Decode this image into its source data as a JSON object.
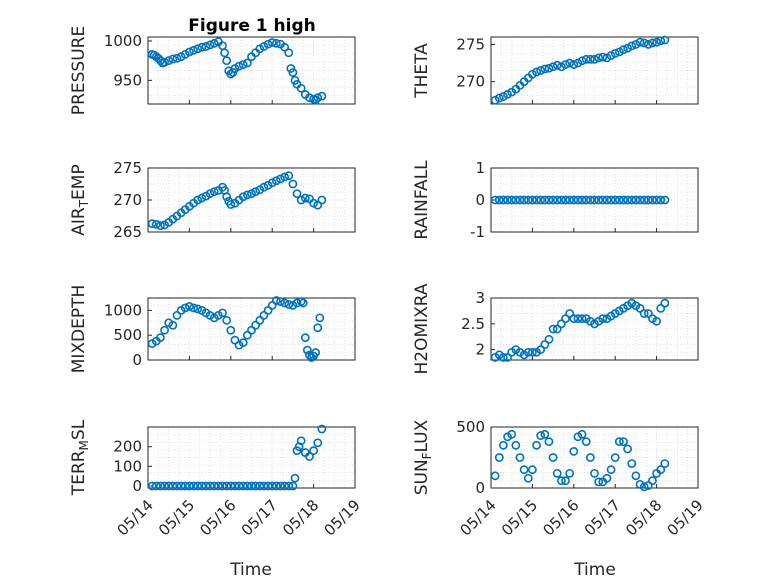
{
  "figure": {
    "title": "Figure 1 high",
    "marker_color": "#0072BD",
    "grid": "dotted-minor",
    "xlabel": "Time"
  },
  "chart_data": [
    {
      "type": "scatter",
      "ylabel": "PRESSURE",
      "title": "Figure 1 high",
      "xlim": [
        "05/14",
        "05/19"
      ],
      "ylim": [
        920,
        1005
      ],
      "yticks": [
        950,
        1000
      ],
      "x": [
        0.1,
        0.15,
        0.2,
        0.25,
        0.3,
        0.35,
        0.4,
        0.5,
        0.6,
        0.7,
        0.8,
        0.9,
        1.0,
        1.1,
        1.2,
        1.3,
        1.4,
        1.5,
        1.6,
        1.7,
        1.8,
        1.85,
        1.9,
        1.95,
        2.0,
        2.05,
        2.1,
        2.2,
        2.3,
        2.4,
        2.5,
        2.6,
        2.7,
        2.8,
        2.9,
        3.0,
        3.1,
        3.2,
        3.3,
        3.4,
        3.45,
        3.5,
        3.55,
        3.6,
        3.7,
        3.8,
        3.9,
        4.0,
        4.05,
        4.1,
        4.2
      ],
      "values": [
        983,
        982,
        980,
        978,
        975,
        972,
        973,
        975,
        977,
        978,
        980,
        983,
        986,
        988,
        990,
        992,
        993,
        995,
        997,
        999,
        994,
        985,
        975,
        962,
        958,
        960,
        965,
        968,
        970,
        972,
        980,
        985,
        990,
        993,
        996,
        998,
        997,
        996,
        992,
        985,
        965,
        960,
        950,
        945,
        940,
        932,
        928,
        926,
        925,
        928,
        930
      ]
    },
    {
      "type": "scatter",
      "ylabel": "THETA",
      "xlim": [
        "05/14",
        "05/19"
      ],
      "ylim": [
        267,
        276
      ],
      "yticks": [
        270,
        275
      ],
      "x": [
        0.1,
        0.2,
        0.3,
        0.4,
        0.5,
        0.6,
        0.7,
        0.8,
        0.9,
        1.0,
        1.1,
        1.2,
        1.3,
        1.4,
        1.5,
        1.6,
        1.7,
        1.8,
        1.9,
        2.0,
        2.1,
        2.2,
        2.3,
        2.4,
        2.5,
        2.6,
        2.7,
        2.8,
        2.9,
        3.0,
        3.1,
        3.2,
        3.3,
        3.4,
        3.5,
        3.6,
        3.7,
        3.8,
        3.9,
        4.0,
        4.1,
        4.2
      ],
      "values": [
        267.5,
        267.8,
        268.0,
        268.3,
        268.6,
        269.0,
        269.5,
        270.0,
        270.5,
        271.0,
        271.3,
        271.5,
        271.7,
        271.8,
        272.0,
        272.2,
        272.0,
        272.3,
        272.5,
        272.3,
        272.5,
        272.8,
        273.0,
        273.0,
        273.0,
        273.2,
        273.3,
        273.2,
        273.5,
        273.8,
        274.0,
        274.3,
        274.5,
        274.8,
        275.0,
        275.3,
        275.2,
        275.0,
        275.2,
        275.3,
        275.5,
        275.6
      ]
    },
    {
      "type": "scatter",
      "ylabel": "AIR_TEMP",
      "xlim": [
        "05/14",
        "05/19"
      ],
      "ylim": [
        265,
        275
      ],
      "yticks": [
        265,
        270,
        275
      ],
      "x": [
        0.1,
        0.2,
        0.3,
        0.4,
        0.5,
        0.6,
        0.7,
        0.8,
        0.9,
        1.0,
        1.1,
        1.2,
        1.3,
        1.4,
        1.5,
        1.6,
        1.7,
        1.8,
        1.85,
        1.9,
        1.95,
        2.0,
        2.1,
        2.2,
        2.3,
        2.4,
        2.5,
        2.6,
        2.7,
        2.8,
        2.9,
        3.0,
        3.1,
        3.2,
        3.3,
        3.4,
        3.5,
        3.6,
        3.7,
        3.8,
        3.9,
        4.0,
        4.1,
        4.2
      ],
      "values": [
        266.3,
        266.2,
        266.0,
        266.1,
        266.5,
        267.0,
        267.5,
        268.0,
        268.5,
        269.0,
        269.5,
        270.0,
        270.3,
        270.6,
        271.0,
        271.3,
        271.5,
        272.0,
        271.5,
        270.5,
        269.8,
        269.3,
        269.5,
        270.0,
        270.5,
        270.8,
        271.0,
        271.3,
        271.6,
        272.0,
        272.3,
        272.7,
        273.0,
        273.3,
        273.6,
        273.8,
        272.5,
        271.0,
        270.0,
        270.3,
        270.2,
        269.5,
        269.2,
        270.0
      ]
    },
    {
      "type": "scatter",
      "ylabel": "RAINFALL",
      "xlim": [
        "05/14",
        "05/19"
      ],
      "ylim": [
        -1,
        1
      ],
      "yticks": [
        -1,
        0,
        1
      ],
      "x": [
        0.1,
        0.2,
        0.3,
        0.4,
        0.5,
        0.6,
        0.7,
        0.8,
        0.9,
        1.0,
        1.1,
        1.2,
        1.3,
        1.4,
        1.5,
        1.6,
        1.7,
        1.8,
        1.9,
        2.0,
        2.1,
        2.2,
        2.3,
        2.4,
        2.5,
        2.6,
        2.7,
        2.8,
        2.9,
        3.0,
        3.1,
        3.2,
        3.3,
        3.4,
        3.5,
        3.6,
        3.7,
        3.8,
        3.9,
        4.0,
        4.1,
        4.2
      ],
      "values": [
        0,
        0,
        0,
        0,
        0,
        0,
        0,
        0,
        0,
        0,
        0,
        0,
        0,
        0,
        0,
        0,
        0,
        0,
        0,
        0,
        0,
        0,
        0,
        0,
        0,
        0,
        0,
        0,
        0,
        0,
        0,
        0,
        0,
        0,
        0,
        0,
        0,
        0,
        0,
        0,
        0,
        0
      ]
    },
    {
      "type": "scatter",
      "ylabel": "MIXDEPTH",
      "xlim": [
        "05/14",
        "05/19"
      ],
      "ylim": [
        0,
        1250
      ],
      "yticks": [
        0,
        500,
        1000
      ],
      "x": [
        0.1,
        0.2,
        0.3,
        0.4,
        0.5,
        0.6,
        0.7,
        0.8,
        0.9,
        1.0,
        1.1,
        1.2,
        1.3,
        1.4,
        1.5,
        1.6,
        1.7,
        1.8,
        1.9,
        2.0,
        2.1,
        2.2,
        2.3,
        2.4,
        2.5,
        2.6,
        2.7,
        2.8,
        2.9,
        3.0,
        3.1,
        3.2,
        3.3,
        3.4,
        3.5,
        3.6,
        3.7,
        3.75,
        3.8,
        3.85,
        3.9,
        3.95,
        4.0,
        4.05,
        4.1,
        4.15
      ],
      "values": [
        330,
        380,
        450,
        600,
        750,
        700,
        900,
        1000,
        1050,
        1080,
        1050,
        1030,
        1000,
        950,
        900,
        850,
        900,
        950,
        800,
        600,
        400,
        300,
        350,
        500,
        600,
        700,
        800,
        900,
        1000,
        1100,
        1200,
        1180,
        1150,
        1120,
        1100,
        1150,
        1180,
        1150,
        450,
        200,
        100,
        50,
        80,
        150,
        650,
        850
      ]
    },
    {
      "type": "scatter",
      "ylabel": "H2OMIXRA",
      "xlim": [
        "05/14",
        "05/19"
      ],
      "ylim": [
        1.8,
        3.0
      ],
      "yticks": [
        2,
        2.5,
        3
      ],
      "x": [
        0.1,
        0.2,
        0.3,
        0.4,
        0.5,
        0.6,
        0.7,
        0.8,
        0.9,
        1.0,
        1.1,
        1.2,
        1.3,
        1.4,
        1.5,
        1.6,
        1.7,
        1.8,
        1.9,
        2.0,
        2.1,
        2.2,
        2.3,
        2.4,
        2.5,
        2.6,
        2.7,
        2.8,
        2.9,
        3.0,
        3.1,
        3.2,
        3.3,
        3.4,
        3.5,
        3.6,
        3.7,
        3.8,
        3.9,
        4.0,
        4.1,
        4.2
      ],
      "values": [
        1.85,
        1.9,
        1.85,
        1.85,
        1.95,
        2.0,
        1.95,
        1.9,
        1.95,
        1.95,
        1.95,
        2.0,
        2.1,
        2.2,
        2.4,
        2.4,
        2.5,
        2.6,
        2.7,
        2.6,
        2.6,
        2.6,
        2.6,
        2.55,
        2.5,
        2.55,
        2.6,
        2.6,
        2.65,
        2.7,
        2.75,
        2.8,
        2.85,
        2.9,
        2.85,
        2.8,
        2.7,
        2.7,
        2.6,
        2.55,
        2.8,
        2.9
      ]
    },
    {
      "type": "scatter",
      "ylabel": "TERR_MSL",
      "xlim": [
        "05/14",
        "05/19"
      ],
      "ylim": [
        -10,
        300
      ],
      "yticks": [
        0,
        100,
        200
      ],
      "x": [
        0.1,
        0.2,
        0.3,
        0.4,
        0.5,
        0.6,
        0.7,
        0.8,
        0.9,
        1.0,
        1.1,
        1.2,
        1.3,
        1.4,
        1.5,
        1.6,
        1.7,
        1.8,
        1.9,
        2.0,
        2.1,
        2.2,
        2.3,
        2.4,
        2.5,
        2.6,
        2.7,
        2.8,
        2.9,
        3.0,
        3.1,
        3.2,
        3.3,
        3.4,
        3.5,
        3.55,
        3.6,
        3.65,
        3.7,
        3.8,
        3.9,
        4.0,
        4.1,
        4.2
      ],
      "values": [
        0,
        0,
        0,
        0,
        0,
        0,
        0,
        0,
        0,
        0,
        0,
        0,
        0,
        0,
        0,
        0,
        0,
        0,
        0,
        0,
        0,
        0,
        0,
        0,
        0,
        0,
        0,
        0,
        0,
        0,
        0,
        0,
        0,
        0,
        0,
        40,
        180,
        200,
        230,
        170,
        150,
        180,
        220,
        290
      ]
    },
    {
      "type": "scatter",
      "ylabel": "SUN_FLUX",
      "xlim": [
        "05/14",
        "05/19"
      ],
      "ylim": [
        0,
        500
      ],
      "yticks": [
        0,
        500
      ],
      "x": [
        0.1,
        0.2,
        0.3,
        0.4,
        0.5,
        0.6,
        0.7,
        0.8,
        0.9,
        1.0,
        1.1,
        1.2,
        1.3,
        1.4,
        1.5,
        1.6,
        1.7,
        1.8,
        1.9,
        2.0,
        2.1,
        2.2,
        2.3,
        2.4,
        2.5,
        2.6,
        2.7,
        2.8,
        2.9,
        3.0,
        3.1,
        3.2,
        3.3,
        3.4,
        3.5,
        3.6,
        3.7,
        3.8,
        3.9,
        4.0,
        4.1,
        4.2
      ],
      "values": [
        100,
        250,
        350,
        420,
        440,
        350,
        250,
        150,
        80,
        150,
        350,
        430,
        440,
        380,
        250,
        120,
        60,
        60,
        120,
        300,
        420,
        440,
        380,
        250,
        120,
        50,
        50,
        80,
        150,
        250,
        380,
        380,
        320,
        200,
        100,
        30,
        10,
        20,
        60,
        120,
        150,
        200
      ]
    }
  ],
  "xticks": [
    "05/14",
    "05/15",
    "05/16",
    "05/17",
    "05/18",
    "05/19"
  ]
}
